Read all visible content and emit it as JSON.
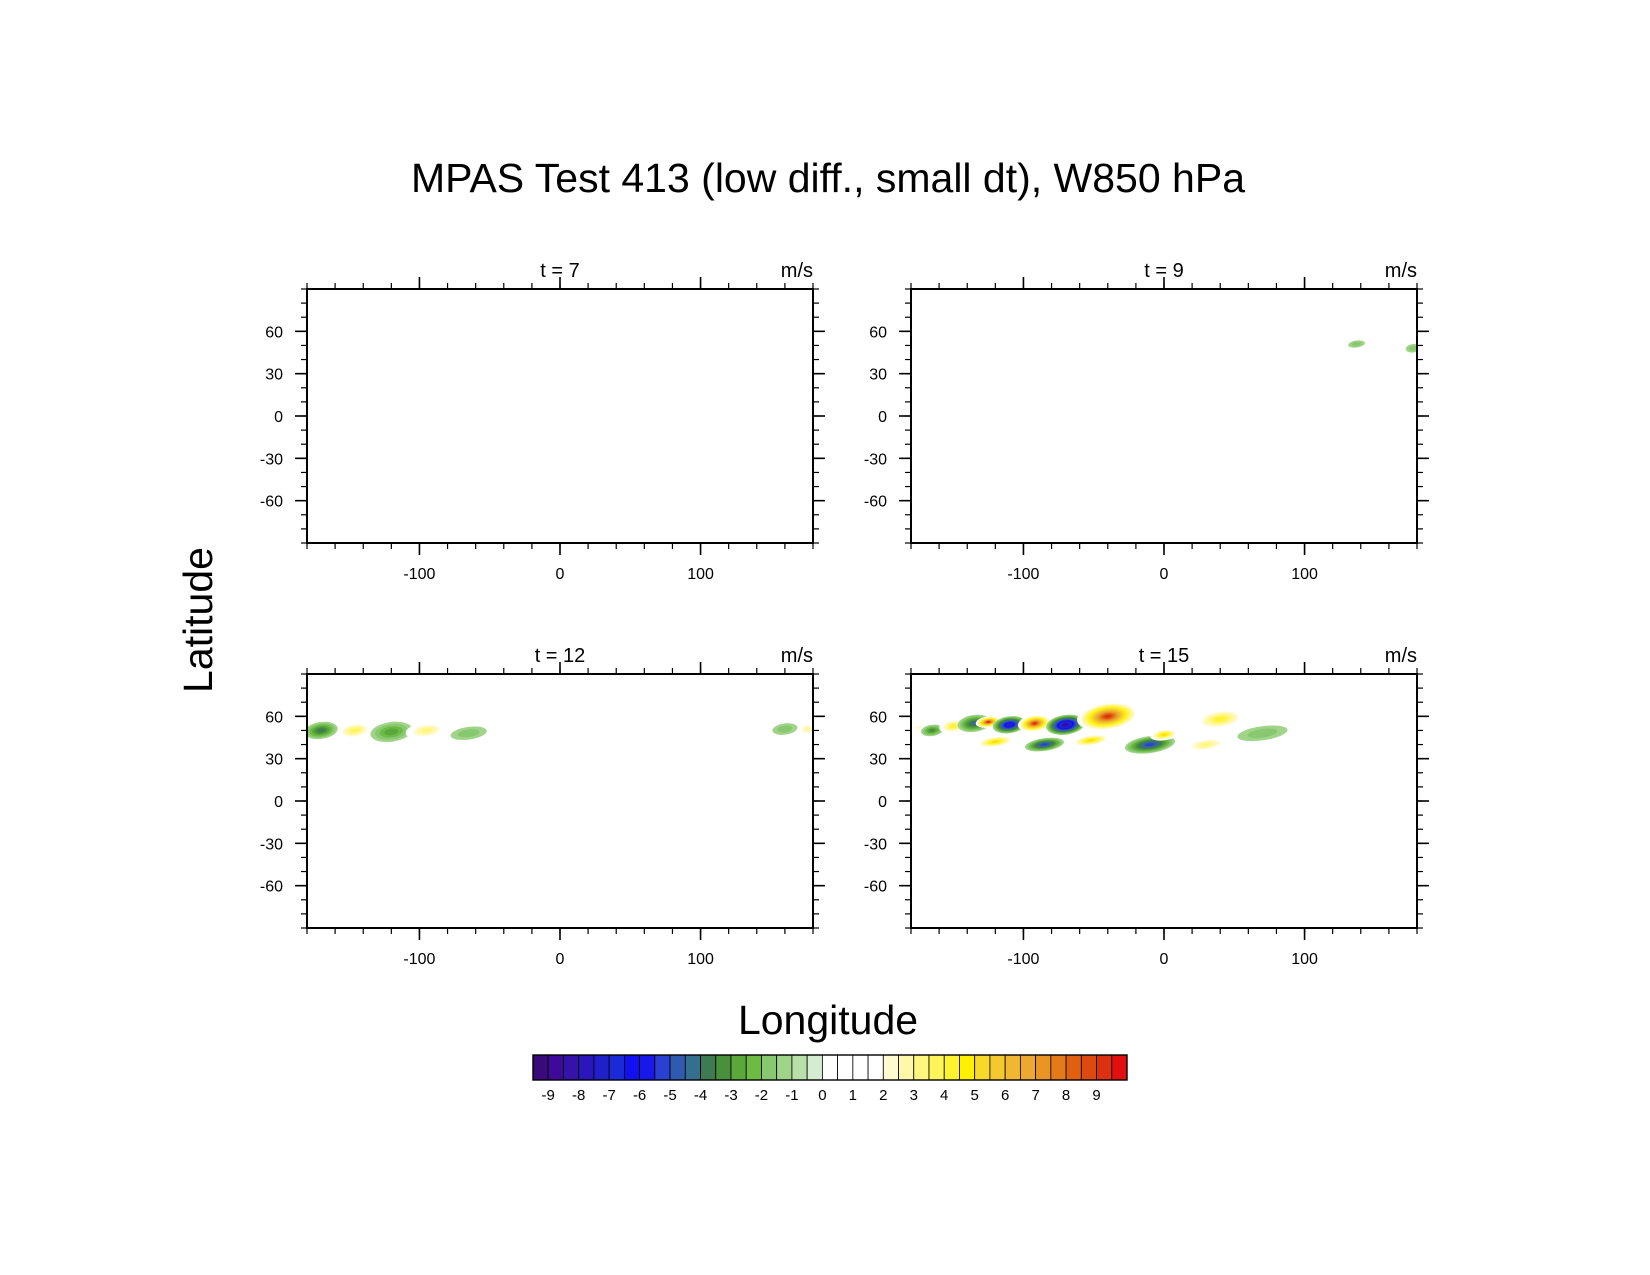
{
  "figure": {
    "title": "MPAS Test 413 (low diff., small dt), W850 hPa",
    "xlabel": "Longitude",
    "ylabel": "Latitude"
  },
  "chart_data": [
    {
      "type": "heatmap",
      "panel_label": "t = 7",
      "units": "m/s",
      "xlim": [
        -180,
        180
      ],
      "ylim": [
        -90,
        90
      ],
      "xticks": [
        "-100",
        "0",
        "100"
      ],
      "xtick_values": [
        -100,
        0,
        100
      ],
      "yticks": [
        "60",
        "30",
        "0",
        "-30",
        "-60"
      ],
      "ytick_values": [
        60,
        30,
        0,
        -30,
        -60
      ],
      "features": []
    },
    {
      "type": "heatmap",
      "panel_label": "t = 9",
      "units": "m/s",
      "xlim": [
        -180,
        180
      ],
      "ylim": [
        -90,
        90
      ],
      "xticks": [
        "-100",
        "0",
        "100"
      ],
      "xtick_values": [
        -100,
        0,
        100
      ],
      "yticks": [
        "60",
        "30",
        "0",
        "-30",
        "-60"
      ],
      "ytick_values": [
        60,
        30,
        0,
        -30,
        -60
      ],
      "features": [
        {
          "lon": 137,
          "lat": 51,
          "rlon": 6,
          "rlat": 2.5,
          "value": -1.5
        },
        {
          "lon": 154,
          "lat": 51,
          "rlon": 9,
          "rlat": 3.5,
          "value": 1.5
        },
        {
          "lon": 177,
          "lat": 48,
          "rlon": 5,
          "rlat": 3,
          "value": -1.5
        }
      ]
    },
    {
      "type": "heatmap",
      "panel_label": "t = 12",
      "units": "m/s",
      "xlim": [
        -180,
        180
      ],
      "ylim": [
        -90,
        90
      ],
      "xticks": [
        "-100",
        "0",
        "100"
      ],
      "xtick_values": [
        -100,
        0,
        100
      ],
      "yticks": [
        "60",
        "30",
        "0",
        "-30",
        "-60"
      ],
      "ytick_values": [
        60,
        30,
        0,
        -30,
        -60
      ],
      "features": [
        {
          "lon": -170,
          "lat": 50,
          "rlon": 12,
          "rlat": 6,
          "value": -3.5
        },
        {
          "lon": -146,
          "lat": 50,
          "rlon": 13,
          "rlat": 6,
          "value": 3.5
        },
        {
          "lon": -120,
          "lat": 49,
          "rlon": 15,
          "rlat": 7,
          "value": -2.5
        },
        {
          "lon": -95,
          "lat": 50,
          "rlon": 15,
          "rlat": 6,
          "value": 3.0
        },
        {
          "lon": -65,
          "lat": 48,
          "rlon": 13,
          "rlat": 4.5,
          "value": -1.5
        },
        {
          "lon": 160,
          "lat": 51,
          "rlon": 9,
          "rlat": 4,
          "value": -1.5
        },
        {
          "lon": 176,
          "lat": 51,
          "rlon": 7,
          "rlat": 5,
          "value": 2.5
        }
      ]
    },
    {
      "type": "heatmap",
      "panel_label": "t = 15",
      "units": "m/s",
      "xlim": [
        -180,
        180
      ],
      "ylim": [
        -90,
        90
      ],
      "xticks": [
        "-100",
        "0",
        "100"
      ],
      "xtick_values": [
        -100,
        0,
        100
      ],
      "yticks": [
        "60",
        "30",
        "0",
        "-30",
        "-60"
      ],
      "ytick_values": [
        60,
        30,
        0,
        -30,
        -60
      ],
      "features": [
        {
          "lon": -175,
          "lat": 52,
          "rlon": 6,
          "rlat": 3,
          "value": 2.0
        },
        {
          "lon": -165,
          "lat": 50,
          "rlon": 8,
          "rlat": 4,
          "value": -3.0
        },
        {
          "lon": -150,
          "lat": 53,
          "rlon": 10,
          "rlat": 5,
          "value": 4.0
        },
        {
          "lon": -135,
          "lat": 55,
          "rlon": 12,
          "rlat": 6,
          "value": -4.0
        },
        {
          "lon": -125,
          "lat": 56,
          "rlon": 9,
          "rlat": 4,
          "value": 9.0
        },
        {
          "lon": -110,
          "lat": 54,
          "rlon": 12,
          "rlat": 6,
          "value": -7.0
        },
        {
          "lon": -92,
          "lat": 55,
          "rlon": 12,
          "rlat": 6,
          "value": 9.0
        },
        {
          "lon": -70,
          "lat": 54,
          "rlon": 14,
          "rlat": 7,
          "value": -8.5
        },
        {
          "lon": -40,
          "lat": 60,
          "rlon": 22,
          "rlat": 10,
          "value": 9.0
        },
        {
          "lon": -120,
          "lat": 42,
          "rlon": 14,
          "rlat": 4,
          "value": 5.0
        },
        {
          "lon": -85,
          "lat": 40,
          "rlon": 14,
          "rlat": 4.5,
          "value": -5.0
        },
        {
          "lon": -52,
          "lat": 43,
          "rlon": 14,
          "rlat": 4,
          "value": 5.0
        },
        {
          "lon": -10,
          "lat": 40,
          "rlon": 18,
          "rlat": 6,
          "value": -5.0
        },
        {
          "lon": 0,
          "lat": 47,
          "rlon": 10,
          "rlat": 4,
          "value": 5.0
        },
        {
          "lon": 40,
          "lat": 58,
          "rlon": 18,
          "rlat": 7,
          "value": 4.0
        },
        {
          "lon": 30,
          "lat": 40,
          "rlon": 16,
          "rlat": 5,
          "value": 3.0
        },
        {
          "lon": 70,
          "lat": 48,
          "rlon": 18,
          "rlat": 5,
          "value": -1.5
        }
      ]
    }
  ],
  "colorbar": {
    "labels": [
      "-9",
      "-8",
      "-7",
      "-6",
      "-5",
      "-4",
      "-3",
      "-2",
      "-1",
      "0",
      "1",
      "2",
      "3",
      "4",
      "5",
      "6",
      "7",
      "8",
      "9"
    ],
    "levels": [
      -9.5,
      -9,
      -8.5,
      -8,
      -7.5,
      -7,
      -6.5,
      -6,
      -5.5,
      -5,
      -4.5,
      -4,
      -3.5,
      -3,
      -2.5,
      -2,
      -1.5,
      -1,
      -0.5,
      0,
      0.5,
      1,
      1.5,
      2,
      2.5,
      3,
      3.5,
      4,
      4.5,
      5,
      5.5,
      6,
      6.5,
      7,
      7.5,
      8,
      8.5,
      9,
      9.5
    ],
    "colors": [
      "#3b0a7a",
      "#3d0a99",
      "#3512a8",
      "#2a16bb",
      "#2020c8",
      "#1a2ad8",
      "#1010f0",
      "#1818e8",
      "#2a40d0",
      "#305ab0",
      "#356f8f",
      "#3e7a52",
      "#4a8f3c",
      "#5aa83c",
      "#6cbc44",
      "#88c870",
      "#a0d488",
      "#b8e0a8",
      "#d4ecd0",
      "#ffffff",
      "#ffffff",
      "#ffffff",
      "#ffffff",
      "#fffad0",
      "#fff8a8",
      "#fff880",
      "#fff45a",
      "#fff22e",
      "#fff000",
      "#f8d828",
      "#f5c830",
      "#efb830",
      "#eca830",
      "#e89525",
      "#e47a18",
      "#e06010",
      "#dc4a10",
      "#dc3010",
      "#e01010"
    ]
  }
}
